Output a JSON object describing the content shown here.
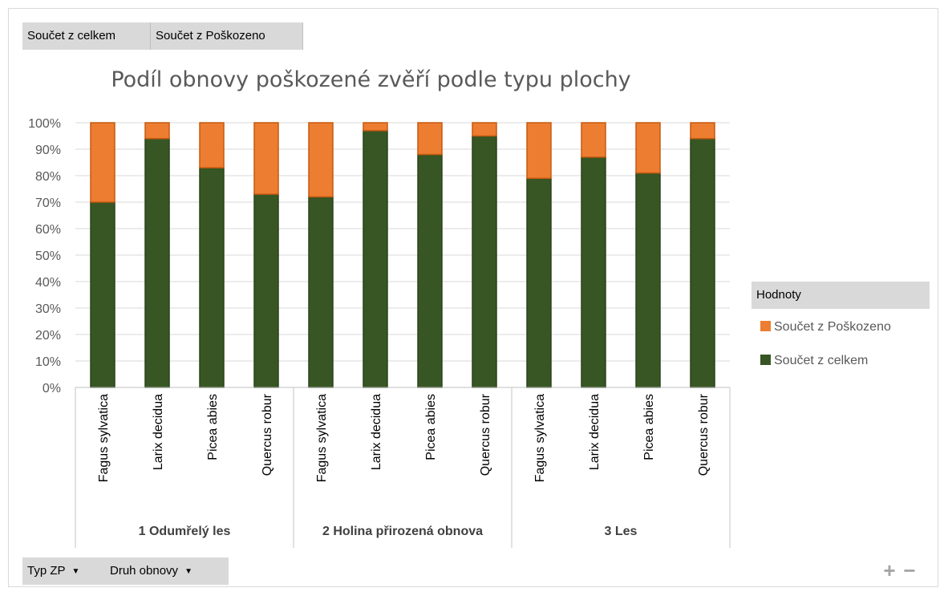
{
  "field_buttons": {
    "total": "Součet z celkem",
    "damaged": "Součet z Poškozeno"
  },
  "filters": {
    "typ_zp": "Typ ZP",
    "druh_obnovy": "Druh obnovy"
  },
  "legend": {
    "title": "Hodnoty"
  },
  "colors": {
    "total": "#375623",
    "damaged": "#ed7d31",
    "grid": "#d9d9d9",
    "axis_text": "#595959"
  },
  "chart_data": {
    "type": "bar",
    "stacked": "100%",
    "title": "Podíl obnovy poškozené zvěří podle typu plochy",
    "xlabel": "",
    "ylabel": "",
    "ylim": [
      0,
      100
    ],
    "yticks": [
      "0%",
      "10%",
      "20%",
      "30%",
      "40%",
      "50%",
      "60%",
      "70%",
      "80%",
      "90%",
      "100%"
    ],
    "groups": [
      {
        "label": "1 Odumřelý les",
        "categories": [
          "Fagus sylvatica",
          "Larix decidua",
          "Picea abies",
          "Quercus robur"
        ]
      },
      {
        "label": "2 Holina přirozená obnova",
        "categories": [
          "Fagus sylvatica",
          "Larix decidua",
          "Picea abies",
          "Quercus robur"
        ]
      },
      {
        "label": "3 Les",
        "categories": [
          "Fagus sylvatica",
          "Larix decidua",
          "Picea abies",
          "Quercus robur"
        ]
      }
    ],
    "series": [
      {
        "name": "Součet z celkem",
        "values": [
          70,
          94,
          83,
          73,
          72,
          97,
          88,
          95,
          79,
          87,
          81,
          94
        ]
      },
      {
        "name": "Součet z Poškozeno",
        "values": [
          30,
          6,
          17,
          27,
          28,
          3,
          12,
          5,
          21,
          13,
          19,
          6
        ]
      }
    ],
    "legend_position": "right",
    "grid": true
  }
}
